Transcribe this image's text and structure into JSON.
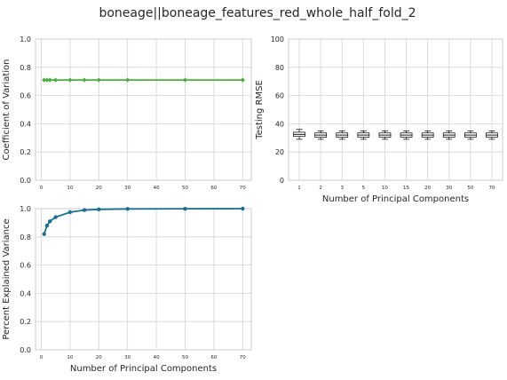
{
  "figure": {
    "title": "boneage||boneage_features_red_whole_half_fold_2"
  },
  "colors": {
    "cv_line": "#4caf3f",
    "variance_line": "#1b6f8e",
    "grid": "#d3d3d3",
    "axes_edge": "#cccccc",
    "box": "#000000"
  },
  "chart_data": [
    {
      "id": "cv",
      "type": "line",
      "title": "",
      "xlabel": "",
      "ylabel": "Coefficient of Variation",
      "x": [
        1,
        2,
        3,
        5,
        10,
        15,
        20,
        30,
        50,
        70
      ],
      "y": [
        0.71,
        0.71,
        0.71,
        0.71,
        0.71,
        0.71,
        0.71,
        0.71,
        0.71,
        0.71
      ],
      "xlim": [
        -2,
        73
      ],
      "ylim": [
        0,
        1.0
      ],
      "xticks": [
        0,
        10,
        20,
        30,
        40,
        50,
        60,
        70
      ],
      "xtick_labels": [
        "0",
        "10",
        "20",
        "30",
        "40",
        "50",
        "60",
        "70"
      ],
      "yticks": [
        0,
        0.2,
        0.4,
        0.6,
        0.8,
        1.0
      ],
      "ytick_labels": [
        "0.0",
        "0.2",
        "0.4",
        "0.6",
        "0.8",
        "1.0"
      ],
      "grid": true,
      "marker": "diamond"
    },
    {
      "id": "rmse",
      "type": "box",
      "title": "",
      "xlabel": "Number of Principal Components",
      "ylabel": "Testing RMSE",
      "categories": [
        "1",
        "2",
        "3",
        "5",
        "10",
        "15",
        "20",
        "30",
        "50",
        "70"
      ],
      "boxes": [
        {
          "whisker_low": 29,
          "q1": 31,
          "median": 32.5,
          "q3": 34,
          "whisker_high": 36
        },
        {
          "whisker_low": 29,
          "q1": 30.5,
          "median": 32,
          "q3": 33.5,
          "whisker_high": 35
        },
        {
          "whisker_low": 29,
          "q1": 30.5,
          "median": 32,
          "q3": 33.5,
          "whisker_high": 35
        },
        {
          "whisker_low": 29,
          "q1": 30.5,
          "median": 32,
          "q3": 33.5,
          "whisker_high": 35
        },
        {
          "whisker_low": 29,
          "q1": 30.5,
          "median": 32,
          "q3": 33.5,
          "whisker_high": 35
        },
        {
          "whisker_low": 29,
          "q1": 30.5,
          "median": 32,
          "q3": 33.5,
          "whisker_high": 35
        },
        {
          "whisker_low": 29,
          "q1": 30.5,
          "median": 32,
          "q3": 33.5,
          "whisker_high": 35
        },
        {
          "whisker_low": 29,
          "q1": 30.5,
          "median": 32,
          "q3": 33.5,
          "whisker_high": 35
        },
        {
          "whisker_low": 29,
          "q1": 30.5,
          "median": 32,
          "q3": 33.5,
          "whisker_high": 35
        },
        {
          "whisker_low": 29,
          "q1": 30.5,
          "median": 32,
          "q3": 33.5,
          "whisker_high": 35
        }
      ],
      "ylim": [
        0,
        100
      ],
      "yticks": [
        0,
        20,
        40,
        60,
        80,
        100
      ],
      "ytick_labels": [
        "0",
        "20",
        "40",
        "60",
        "80",
        "100"
      ],
      "grid": true
    },
    {
      "id": "variance",
      "type": "line",
      "title": "",
      "xlabel": "Number of Principal Components",
      "ylabel": "Percent Explained Variance",
      "x": [
        1,
        2,
        3,
        5,
        10,
        15,
        20,
        30,
        50,
        70
      ],
      "y": [
        0.82,
        0.88,
        0.91,
        0.94,
        0.975,
        0.99,
        0.995,
        0.998,
        0.999,
        1.0
      ],
      "xlim": [
        -2,
        73
      ],
      "ylim": [
        0,
        1.0
      ],
      "xticks": [
        0,
        10,
        20,
        30,
        40,
        50,
        60,
        70
      ],
      "xtick_labels": [
        "0",
        "10",
        "20",
        "30",
        "40",
        "50",
        "60",
        "70"
      ],
      "yticks": [
        0,
        0.2,
        0.4,
        0.6,
        0.8,
        1.0
      ],
      "ytick_labels": [
        "0.0",
        "0.2",
        "0.4",
        "0.6",
        "0.8",
        "1.0"
      ],
      "grid": true,
      "marker": "circle"
    }
  ]
}
